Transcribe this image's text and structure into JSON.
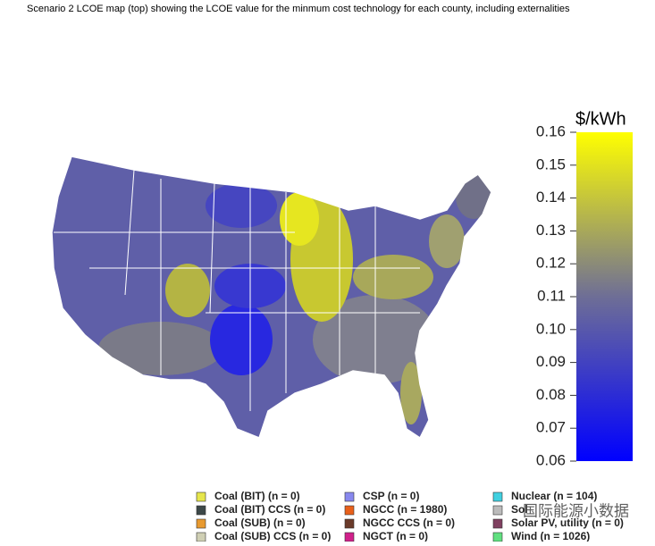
{
  "title": "Scenario 2 LCOE map (top) showing the LCOE value for the minmum cost technology for each county, including externalities",
  "colorbar": {
    "title": "$/kWh",
    "lim": [
      0.06,
      0.16
    ],
    "ticks": [
      0.06,
      0.07,
      0.08,
      0.09,
      {
        "value": 0.1,
        "label": "0.10"
      },
      0.11,
      0.12,
      0.13,
      0.14,
      0.15,
      0.16
    ],
    "colors": [
      "#0000ff",
      "#6e6e96",
      "#ffff00"
    ]
  },
  "legend": [
    {
      "label": "Coal (BIT) (n = 0)",
      "color": "#e6e64c"
    },
    {
      "label": "Coal (BIT) CCS (n = 0)",
      "color": "#3c4848"
    },
    {
      "label": "Coal (SUB) (n = 0)",
      "color": "#e89a30"
    },
    {
      "label": "Coal (SUB) CCS (n = 0)",
      "color": "#cfcfb4"
    },
    {
      "label": "CSP (n = 0)",
      "color": "#8888ee"
    },
    {
      "label": "NGCC (n = 1980)",
      "color": "#e8601a"
    },
    {
      "label": "NGCC CCS (n = 0)",
      "color": "#6a3a2a"
    },
    {
      "label": "NGCT (n = 0)",
      "color": "#d0208a"
    },
    {
      "label": "Nuclear (n = 104)",
      "color": "#40d0e0"
    },
    {
      "label": "Sol",
      "color": "#bbbbbb"
    },
    {
      "label": "Solar PV, utility (n = 0)",
      "color": "#804060"
    },
    {
      "label": "Wind (n = 1026)",
      "color": "#60e080"
    }
  ],
  "watermark": "国际能源小数据"
}
